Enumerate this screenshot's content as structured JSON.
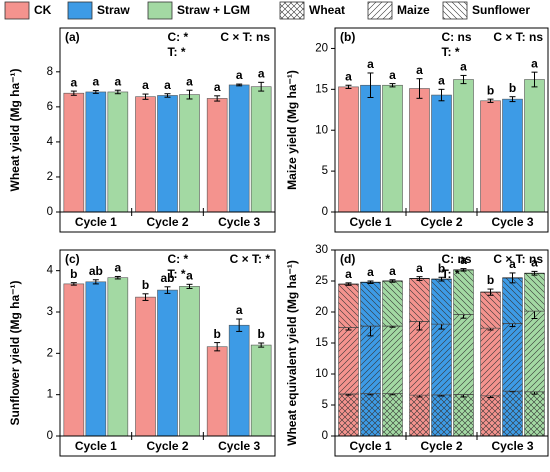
{
  "legend": {
    "series": [
      {
        "name": "CK",
        "color": "#f4938e"
      },
      {
        "name": "Straw",
        "color": "#3d9be6"
      },
      {
        "name": "Straw + LGM",
        "color": "#a3d9a3"
      }
    ],
    "stacks": [
      {
        "name": "Wheat",
        "hatch": "cross"
      },
      {
        "name": "Maize",
        "hatch": "forward"
      },
      {
        "name": "Sunflower",
        "hatch": "backward"
      }
    ]
  },
  "chart_data": [
    {
      "type": "bar",
      "panel": "(a)",
      "ylabel": "Wheat yield (Mg ha⁻¹)",
      "categories": [
        "Cycle 1",
        "Cycle 2",
        "Cycle 3"
      ],
      "ylim": [
        0,
        10.5
      ],
      "yticks": [
        0,
        2,
        4,
        6,
        8
      ],
      "stats": [
        "C: *",
        "T: *",
        "C × T: ns"
      ],
      "series": [
        {
          "values": [
            6.78,
            6.58,
            6.48
          ],
          "errors": [
            0.12,
            0.15,
            0.15
          ],
          "labels": [
            "a",
            "a",
            "a"
          ]
        },
        {
          "values": [
            6.85,
            6.65,
            7.25
          ],
          "errors": [
            0.08,
            0.1,
            0.05
          ],
          "labels": [
            "a",
            "a",
            "a"
          ]
        },
        {
          "values": [
            6.85,
            6.7,
            7.15
          ],
          "errors": [
            0.1,
            0.25,
            0.25
          ],
          "labels": [
            "a",
            "a",
            "a"
          ]
        }
      ]
    },
    {
      "type": "bar",
      "panel": "(b)",
      "ylabel": "Maize yield (Mg ha⁻¹)",
      "categories": [
        "Cycle 1",
        "Cycle 2",
        "Cycle 3"
      ],
      "ylim": [
        0,
        22.5
      ],
      "yticks": [
        0,
        5,
        10,
        15,
        20
      ],
      "stats": [
        "C: ns",
        "T: *",
        "C × T: ns"
      ],
      "series": [
        {
          "values": [
            15.3,
            15.1,
            13.6
          ],
          "errors": [
            0.2,
            1.2,
            0.2
          ],
          "labels": [
            "a",
            "a",
            "b"
          ]
        },
        {
          "values": [
            15.5,
            14.3,
            13.8
          ],
          "errors": [
            1.5,
            0.7,
            0.3
          ],
          "labels": [
            "a",
            "a",
            "b"
          ]
        },
        {
          "values": [
            15.5,
            16.2,
            16.2
          ],
          "errors": [
            0.2,
            0.5,
            0.9
          ],
          "labels": [
            "a",
            "a",
            "a"
          ]
        }
      ]
    },
    {
      "type": "bar",
      "panel": "(c)",
      "ylabel": "Sunflower yield (Mg ha⁻¹)",
      "categories": [
        "Cycle 1",
        "Cycle 2",
        "Cycle 3"
      ],
      "ylim": [
        0,
        4.5
      ],
      "yticks": [
        0,
        1,
        2,
        3,
        4
      ],
      "stats": [
        "C: *",
        "T: *",
        "C × T: *"
      ],
      "series": [
        {
          "values": [
            3.68,
            3.36,
            2.16
          ],
          "errors": [
            0.03,
            0.08,
            0.1
          ],
          "labels": [
            "b",
            "b",
            "b"
          ]
        },
        {
          "values": [
            3.73,
            3.53,
            2.68
          ],
          "errors": [
            0.05,
            0.08,
            0.15
          ],
          "labels": [
            "ab",
            "ab",
            "a"
          ]
        },
        {
          "values": [
            3.83,
            3.62,
            2.2
          ],
          "errors": [
            0.03,
            0.05,
            0.05
          ],
          "labels": [
            "a",
            "a",
            "b"
          ]
        }
      ]
    },
    {
      "type": "stacked_bar",
      "panel": "(d)",
      "ylabel": "Wheat equivalent yield (Mg ha⁻¹)",
      "categories": [
        "Cycle 1",
        "Cycle 2",
        "Cycle 3"
      ],
      "ylim": [
        0,
        30
      ],
      "yticks": [
        0,
        5,
        10,
        15,
        20,
        25,
        30
      ],
      "stats": [
        "C: ns",
        "T: *",
        "C × T: ns"
      ],
      "series": [
        {
          "values": [
            [
              6.8,
              10.7,
              7.0
            ],
            [
              6.6,
              11.9,
              6.9
            ],
            [
              6.5,
              10.9,
              5.8
            ]
          ],
          "errors": [
            [
              0.2,
              0.4,
              0.2
            ],
            [
              0.3,
              1.4,
              0.3
            ],
            [
              0.3,
              0.3,
              0.5
            ]
          ],
          "labels": [
            "a",
            "a",
            "b"
          ]
        },
        {
          "values": [
            [
              6.85,
              10.9,
              7.05
            ],
            [
              6.65,
              11.4,
              7.25
            ],
            [
              7.25,
              10.9,
              7.35
            ]
          ],
          "errors": [
            [
              0.2,
              1.6,
              0.2
            ],
            [
              0.2,
              0.8,
              0.3
            ],
            [
              0.1,
              0.5,
              0.8
            ]
          ],
          "labels": [
            "a",
            "b",
            "a"
          ]
        },
        {
          "values": [
            [
              6.85,
              10.9,
              7.25
            ],
            [
              6.7,
              12.9,
              7.2
            ],
            [
              7.15,
              13.0,
              6.1
            ]
          ],
          "errors": [
            [
              0.2,
              0.2,
              0.2
            ],
            [
              0.4,
              0.6,
              0.2
            ],
            [
              0.4,
              1.2,
              0.3
            ]
          ],
          "labels": [
            "a",
            "a",
            "a"
          ]
        }
      ]
    }
  ]
}
